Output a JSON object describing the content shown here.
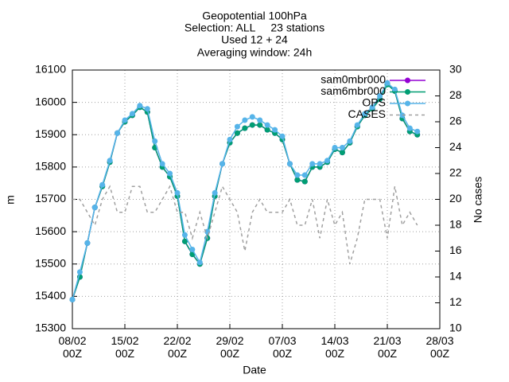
{
  "chart_data": {
    "type": "line",
    "title": [
      "Geopotential 100hPa",
      "Selection: ALL     23 stations",
      "Used 12 + 24",
      "Averaging window: 24h"
    ],
    "xlabel": "Date",
    "ylabel": "m",
    "y2label": "No cases",
    "x": [
      "08/02",
      "09/02",
      "10/02",
      "11/02",
      "12/02",
      "13/02",
      "14/02",
      "15/02",
      "16/02",
      "17/02",
      "18/02",
      "19/02",
      "20/02",
      "21/02",
      "22/02",
      "23/02",
      "24/02",
      "25/02",
      "26/02",
      "27/02",
      "28/02",
      "29/02",
      "01/03",
      "02/03",
      "03/03",
      "04/03",
      "05/03",
      "06/03",
      "07/03",
      "08/03",
      "09/03",
      "10/03",
      "11/03",
      "12/03",
      "13/03",
      "14/03",
      "15/03",
      "16/03",
      "17/03",
      "18/03",
      "19/03",
      "20/03",
      "21/03",
      "22/03",
      "23/03",
      "24/03",
      "25/03"
    ],
    "xlim": [
      "08/02",
      "28/03"
    ],
    "xticks": [
      {
        "value": "08/02",
        "label": "08/02\n00Z"
      },
      {
        "value": "15/02",
        "label": "15/02\n00Z"
      },
      {
        "value": "22/02",
        "label": "22/02\n00Z"
      },
      {
        "value": "29/02",
        "label": "29/02\n00Z"
      },
      {
        "value": "07/03",
        "label": "07/03\n00Z"
      },
      {
        "value": "14/03",
        "label": "14/03\n00Z"
      },
      {
        "value": "21/03",
        "label": "21/03\n00Z"
      },
      {
        "value": "28/03",
        "label": "28/03\n00Z"
      }
    ],
    "ylim": [
      15300,
      16100
    ],
    "yticks": [
      15300,
      15400,
      15500,
      15600,
      15700,
      15800,
      15900,
      16000,
      16100
    ],
    "y2lim": [
      10,
      30
    ],
    "y2ticks": [
      10,
      12,
      14,
      16,
      18,
      20,
      22,
      24,
      26,
      28,
      30
    ],
    "grid": true,
    "legend": "top-right",
    "series": [
      {
        "name": "sam0mbr000",
        "color": "#9400d3",
        "markers": true,
        "dashed": false,
        "values": [
          15390,
          15460,
          15565,
          15675,
          15740,
          15815,
          15905,
          15940,
          15960,
          15985,
          15970,
          15860,
          15800,
          15770,
          15710,
          15570,
          15530,
          15500,
          15580,
          15710,
          15810,
          15875,
          15905,
          15920,
          15930,
          15930,
          15915,
          15905,
          15885,
          15810,
          15760,
          15755,
          15800,
          15800,
          15815,
          15855,
          15845,
          15875,
          15925,
          15960,
          15980,
          16010,
          16058,
          16035,
          15950,
          15910,
          15900
        ]
      },
      {
        "name": "sam6mbr000",
        "color": "#009e73",
        "markers": true,
        "dashed": false,
        "values": [
          15390,
          15460,
          15565,
          15675,
          15740,
          15815,
          15905,
          15940,
          15960,
          15985,
          15970,
          15860,
          15800,
          15770,
          15710,
          15570,
          15530,
          15500,
          15580,
          15710,
          15810,
          15875,
          15905,
          15920,
          15930,
          15930,
          15915,
          15905,
          15885,
          15810,
          15760,
          15755,
          15800,
          15800,
          15815,
          15855,
          15845,
          15875,
          15925,
          15960,
          15980,
          16010,
          16055,
          16035,
          15950,
          15910,
          15900
        ]
      },
      {
        "name": "OPS",
        "color": "#56b4e9",
        "markers": true,
        "dashed": false,
        "values": [
          15390,
          15475,
          15565,
          15675,
          15745,
          15820,
          15905,
          15945,
          15965,
          15990,
          15980,
          15880,
          15810,
          15780,
          15720,
          15590,
          15545,
          15505,
          15600,
          15720,
          15810,
          15885,
          15925,
          15945,
          15955,
          15945,
          15930,
          15915,
          15895,
          15810,
          15775,
          15775,
          15810,
          15810,
          15820,
          15860,
          15860,
          15880,
          15930,
          15965,
          15985,
          16020,
          16060,
          16040,
          15960,
          15920,
          15910
        ]
      },
      {
        "name": "CASES",
        "color": "#a0a0a0",
        "markers": false,
        "dashed": true,
        "axis": "y2",
        "values": [
          20,
          20,
          19,
          18,
          20,
          21,
          19,
          19,
          21,
          21,
          19,
          19,
          20,
          21,
          19,
          19,
          17,
          19,
          17,
          19,
          21,
          20,
          19,
          16,
          19,
          20,
          19,
          19,
          19,
          20,
          18,
          18,
          20,
          17,
          20,
          18,
          19,
          15,
          17,
          20,
          20,
          20,
          17,
          21,
          18,
          19,
          18
        ]
      }
    ]
  }
}
